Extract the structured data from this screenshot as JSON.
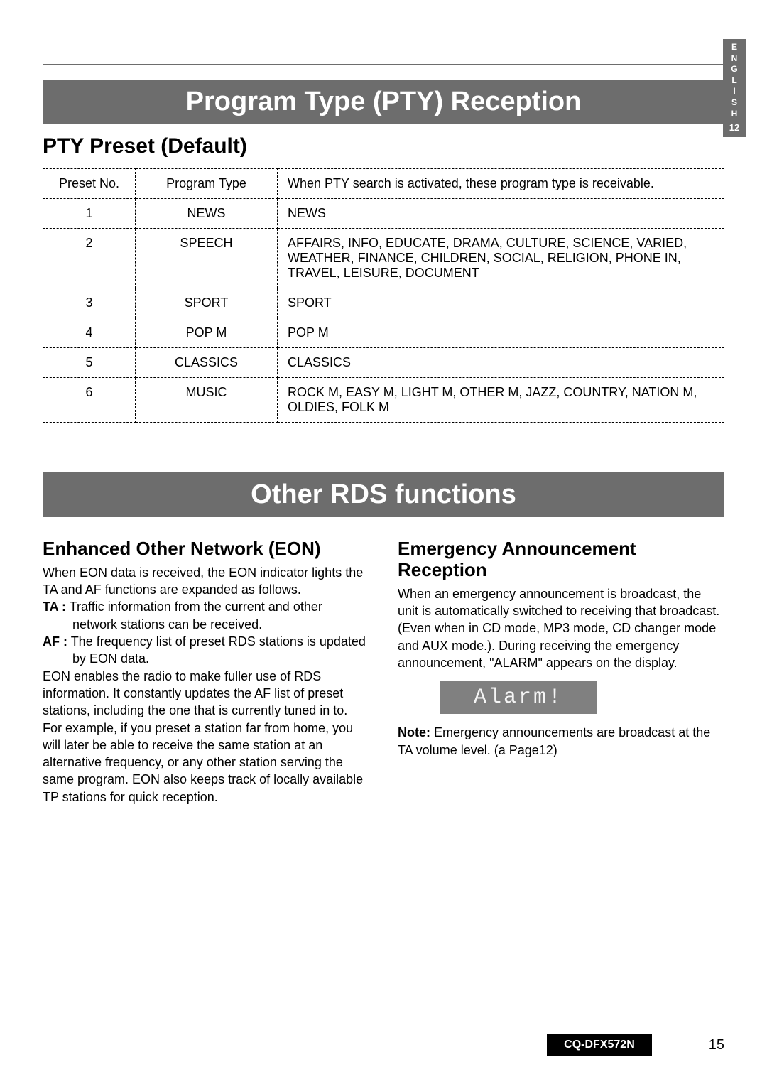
{
  "langTab": {
    "letters": [
      "E",
      "N",
      "G",
      "L",
      "I",
      "S",
      "H"
    ],
    "number": "12"
  },
  "topBanner": "Program Type (PTY) Reception",
  "ptyTitle": "PTY Preset (Default)",
  "ptyTable": {
    "headers": {
      "preset": "Preset No.",
      "type": "Program Type",
      "desc": "When PTY search is activated, these program type is receivable."
    },
    "rows": [
      {
        "preset": "1",
        "type": "NEWS",
        "desc": "NEWS"
      },
      {
        "preset": "2",
        "type": "SPEECH",
        "desc": "AFFAIRS, INFO, EDUCATE, DRAMA, CULTURE, SCIENCE, VARIED, WEATHER, FINANCE, CHILDREN, SOCIAL, RELIGION, PHONE IN, TRAVEL, LEISURE, DOCUMENT"
      },
      {
        "preset": "3",
        "type": "SPORT",
        "desc": "SPORT"
      },
      {
        "preset": "4",
        "type": "POP M",
        "desc": "POP M"
      },
      {
        "preset": "5",
        "type": "CLASSICS",
        "desc": "CLASSICS"
      },
      {
        "preset": "6",
        "type": "MUSIC",
        "desc": "ROCK M, EASY M, LIGHT M, OTHER M, JAZZ, COUNTRY, NATION M, OLDIES, FOLK M"
      }
    ]
  },
  "rdsBanner": "Other RDS functions",
  "eon": {
    "title": "Enhanced Other Network (EON)",
    "intro": "When EON data is received, the EON indicator lights the TA and AF functions are expanded as follows.",
    "ta_label": "TA :",
    "ta_text": "Traffic information from the current and other network stations can be received.",
    "af_label": "AF :",
    "af_text": "The frequency list of preset RDS stations is updated by EON data.",
    "para": "EON enables the radio to make fuller use of RDS information.  It constantly updates the AF list of preset stations, including the one that is currently tuned in to. For example, if you preset a station far from home, you will later be able to receive the same station at an alternative frequency, or any other station serving the same program. EON also keeps track of locally available TP stations for quick reception."
  },
  "emergency": {
    "title": "Emergency Announcement Reception",
    "para": "When an emergency announcement is broadcast, the unit is automatically switched to receiving that broadcast. (Even when in CD mode, MP3 mode, CD changer mode and AUX mode.). During receiving the emergency announcement, \"ALARM\" appears on the display.",
    "alarm": "Alarm!",
    "note_label": "Note:",
    "note_text": " Emergency announcements are broadcast at the TA volume level. (a   Page12)"
  },
  "footer": {
    "model": "CQ-DFX572N",
    "page": "15"
  },
  "colors": {
    "bannerBg": "#6d6d6d",
    "bannerText": "#ffffff",
    "text": "#000000",
    "alarmBg": "#808080",
    "footerBg": "#000000"
  }
}
